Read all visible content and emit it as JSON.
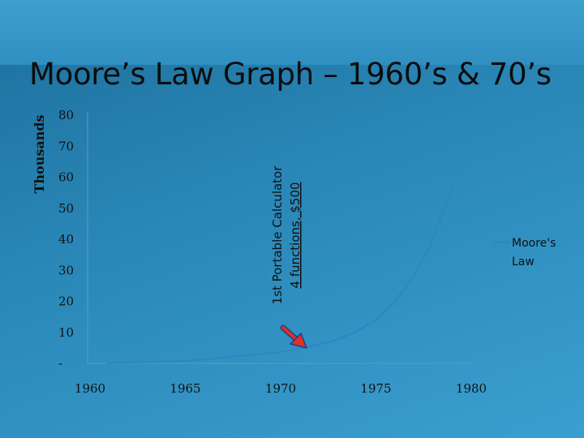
{
  "slide": {
    "title": "Moore’s Law Graph – 1960’s & 70’s"
  },
  "colors": {
    "line": "#2e86c1",
    "arrow_fill": "#e0301e",
    "arrow_stroke": "#1c3f94"
  },
  "chart_data": {
    "type": "line",
    "title": "",
    "xlabel": "",
    "ylabel": "Thousands",
    "xlim": [
      1960,
      1980
    ],
    "ylim": [
      0,
      80
    ],
    "x_ticks": [
      "1960",
      "1965",
      "1970",
      "1975",
      "1980"
    ],
    "y_ticks": [
      "-",
      "10",
      "20",
      "30",
      "40",
      "50",
      "60",
      "70",
      "80"
    ],
    "grid": false,
    "legend_position": "right",
    "series": [
      {
        "name": "Moore's Law",
        "x": [
          1961,
          1962,
          1963,
          1964,
          1965,
          1966,
          1967,
          1968,
          1969,
          1970,
          1971,
          1972,
          1973,
          1974,
          1975,
          1976,
          1977,
          1978,
          1979,
          1980
        ],
        "y": [
          0.15,
          0.23,
          0.35,
          0.53,
          0.8,
          1.2,
          1.8,
          2.4,
          3.0,
          3.6,
          4.6,
          5.9,
          7.5,
          10.0,
          13.5,
          19.0,
          27.0,
          38.0,
          55.0,
          76.0
        ]
      }
    ],
    "annotations": [
      {
        "line1": "1st Portable Calculator",
        "line2": "4 functions, $500",
        "x": 1971
      }
    ]
  }
}
